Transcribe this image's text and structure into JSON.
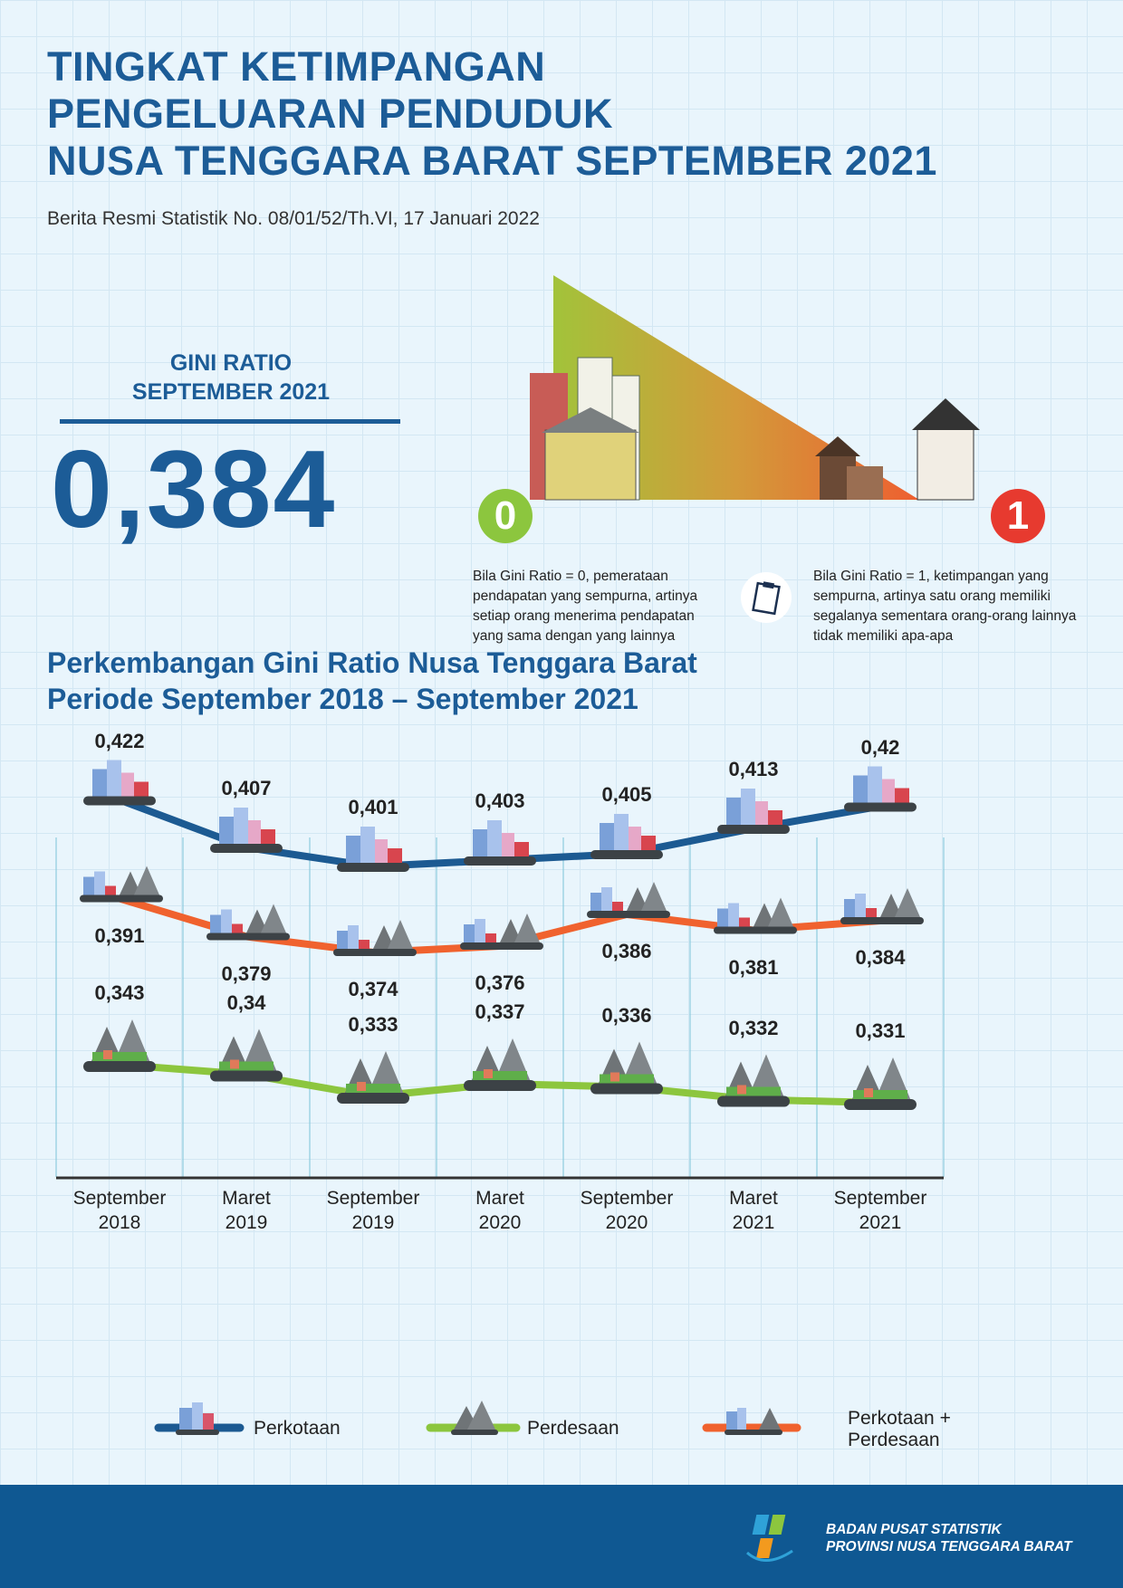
{
  "header": {
    "title_lines": [
      "TINGKAT KETIMPANGAN",
      "PENGELUARAN PENDUDUK",
      "NUSA TENGGARA BARAT SEPTEMBER 2021"
    ],
    "subtitle": "Berita Resmi Statistik No. 08/01/52/Th.VI, 17 Januari 2022"
  },
  "gini": {
    "label_line1": "GINI RATIO",
    "label_line2": "SEPTEMBER 2021",
    "value": "0,384",
    "scale_min": "0",
    "scale_max": "1",
    "desc_zero": "Bila Gini Ratio = 0, pemerataan pendapatan yang sempurna, artinya setiap orang menerima pendapatan yang sama dengan yang lainnya",
    "desc_one": "Bila Gini Ratio = 1, ketimpangan yang sempurna, artinya satu orang memiliki segalanya sementara orang-orang lainnya tidak memiliki apa-apa"
  },
  "chart_data": {
    "type": "line",
    "title_line1": "Perkembangan Gini Ratio Nusa Tenggara Barat",
    "title_line2": "Periode September 2018 – September 2021",
    "categories": [
      [
        "September",
        "2018"
      ],
      [
        "Maret",
        "2019"
      ],
      [
        "September",
        "2019"
      ],
      [
        "Maret",
        "2020"
      ],
      [
        "September",
        "2020"
      ],
      [
        "Maret",
        "2021"
      ],
      [
        "September",
        "2021"
      ]
    ],
    "series": [
      {
        "name": "Perkotaan",
        "color": "#1c5a92",
        "values": [
          0.422,
          0.407,
          0.401,
          0.403,
          0.405,
          0.413,
          0.42
        ],
        "labels": [
          "0,422",
          "0,407",
          "0,401",
          "0,403",
          "0,405",
          "0,413",
          "0,42"
        ]
      },
      {
        "name": "Perkotaan + Perdesaan",
        "color": "#f0622e",
        "values": [
          0.391,
          0.379,
          0.374,
          0.376,
          0.386,
          0.381,
          0.384
        ],
        "labels": [
          "0,391",
          "0,379",
          "0,374",
          "0,376",
          "0,386",
          "0,381",
          "0,384"
        ]
      },
      {
        "name": "Perdesaan",
        "color": "#8cc63e",
        "values": [
          0.343,
          0.34,
          0.333,
          0.337,
          0.336,
          0.332,
          0.331
        ],
        "labels": [
          "0,343",
          "0,34",
          "0,333",
          "0,337",
          "0,336",
          "0,332",
          "0,331"
        ]
      }
    ],
    "legend": [
      "Perkotaan",
      "Perdesaan",
      "Perkotaan +",
      "Perdesaan"
    ],
    "grid": true
  },
  "footer": {
    "org_line1": "BADAN PUSAT STATISTIK",
    "org_line2": "PROVINSI NUSA TENGGARA BARAT"
  }
}
